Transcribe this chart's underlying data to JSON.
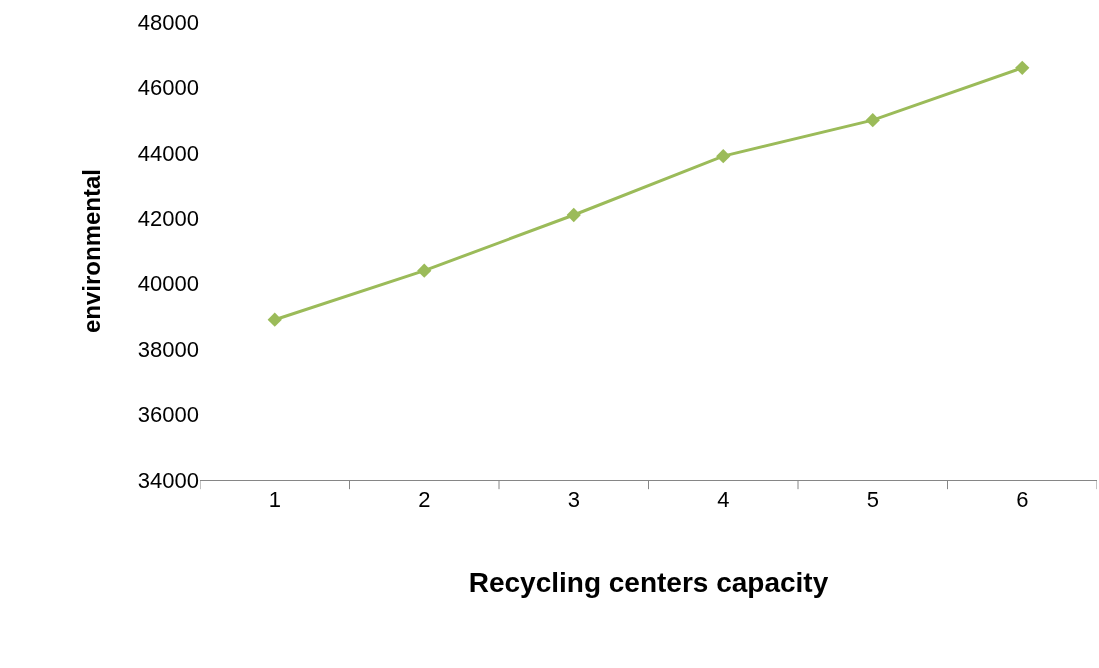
{
  "chart_data": {
    "type": "line",
    "xlabel": "Recycling centers capacity",
    "ylabel": "environmental",
    "categories": [
      "1",
      "2",
      "3",
      "4",
      "5",
      "6"
    ],
    "series": [
      {
        "color": "#9bbb59",
        "values": [
          38900,
          40400,
          42100,
          43900,
          45000,
          46600
        ]
      }
    ],
    "ylim": [
      34000,
      48000
    ],
    "yticks": [
      34000,
      36000,
      38000,
      40000,
      42000,
      44000,
      46000,
      48000
    ],
    "grid": false,
    "marker": "diamond",
    "line_style": "solid"
  }
}
